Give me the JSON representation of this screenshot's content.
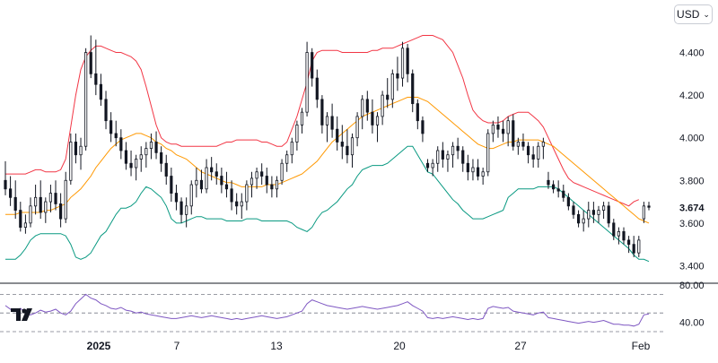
{
  "currency_selector": {
    "value": "USD",
    "icon": "chevron-down-icon"
  },
  "logo": {
    "text": "TV"
  },
  "colors": {
    "upper_band": "#f23645",
    "basis": "#ff9800",
    "lower_band": "#089981",
    "rsi": "#7e57c2",
    "candle": "#131722",
    "axis_text": "#131722"
  },
  "chart_data": [
    {
      "type": "candlestick",
      "title": "",
      "overlays": [
        "bollinger_upper",
        "bollinger_basis",
        "bollinger_lower"
      ],
      "y_ticks": [
        "4.400",
        "4.200",
        "4.000",
        "3.800",
        "3.600",
        "3.400"
      ],
      "ylim": [
        3.385,
        4.52
      ],
      "last_price": "3.674",
      "x_ticks": [
        "2025",
        "7",
        "13",
        "20",
        "27",
        "Feb"
      ],
      "grid": false,
      "candles": [
        [
          3.8,
          3.89,
          3.73,
          3.76
        ],
        [
          3.76,
          3.82,
          3.68,
          3.72
        ],
        [
          3.72,
          3.8,
          3.62,
          3.66
        ],
        [
          3.66,
          3.7,
          3.56,
          3.58
        ],
        [
          3.58,
          3.64,
          3.55,
          3.6
        ],
        [
          3.6,
          3.72,
          3.58,
          3.68
        ],
        [
          3.68,
          3.78,
          3.64,
          3.72
        ],
        [
          3.72,
          3.8,
          3.62,
          3.65
        ],
        [
          3.65,
          3.72,
          3.6,
          3.7
        ],
        [
          3.7,
          3.78,
          3.65,
          3.74
        ],
        [
          3.74,
          3.8,
          3.66,
          3.69
        ],
        [
          3.69,
          3.74,
          3.58,
          3.62
        ],
        [
          3.62,
          3.84,
          3.6,
          3.8
        ],
        [
          3.8,
          4.02,
          3.78,
          3.98
        ],
        [
          3.98,
          4.02,
          3.88,
          3.92
        ],
        [
          3.92,
          4.0,
          3.85,
          3.96
        ],
        [
          3.96,
          4.42,
          3.94,
          4.4
        ],
        [
          4.4,
          4.48,
          4.28,
          4.3
        ],
        [
          4.3,
          4.46,
          4.2,
          4.25
        ],
        [
          4.25,
          4.3,
          4.15,
          4.18
        ],
        [
          4.18,
          4.22,
          4.04,
          4.08
        ],
        [
          4.08,
          4.12,
          3.98,
          4.02
        ],
        [
          4.02,
          4.08,
          3.96,
          4.0
        ],
        [
          4.0,
          4.04,
          3.9,
          3.94
        ],
        [
          3.94,
          3.98,
          3.85,
          3.88
        ],
        [
          3.88,
          3.94,
          3.82,
          3.86
        ],
        [
          3.86,
          3.92,
          3.8,
          3.9
        ],
        [
          3.9,
          3.96,
          3.84,
          3.92
        ],
        [
          3.92,
          3.98,
          3.86,
          3.95
        ],
        [
          3.95,
          4.02,
          3.9,
          3.98
        ],
        [
          3.98,
          4.03,
          3.9,
          3.93
        ],
        [
          3.93,
          3.96,
          3.84,
          3.88
        ],
        [
          3.88,
          3.92,
          3.78,
          3.82
        ],
        [
          3.82,
          3.86,
          3.7,
          3.74
        ],
        [
          3.74,
          3.78,
          3.66,
          3.7
        ],
        [
          3.7,
          3.72,
          3.6,
          3.64
        ],
        [
          3.64,
          3.72,
          3.58,
          3.68
        ],
        [
          3.68,
          3.8,
          3.64,
          3.78
        ],
        [
          3.78,
          3.86,
          3.72,
          3.8
        ],
        [
          3.8,
          3.85,
          3.74,
          3.76
        ],
        [
          3.76,
          3.9,
          3.74,
          3.86
        ],
        [
          3.86,
          3.91,
          3.8,
          3.84
        ],
        [
          3.84,
          3.88,
          3.78,
          3.82
        ],
        [
          3.82,
          3.86,
          3.74,
          3.78
        ],
        [
          3.78,
          3.84,
          3.72,
          3.76
        ],
        [
          3.76,
          3.8,
          3.66,
          3.7
        ],
        [
          3.7,
          3.74,
          3.64,
          3.68
        ],
        [
          3.68,
          3.74,
          3.62,
          3.7
        ],
        [
          3.7,
          3.8,
          3.66,
          3.78
        ],
        [
          3.78,
          3.84,
          3.72,
          3.81
        ],
        [
          3.81,
          3.86,
          3.76,
          3.84
        ],
        [
          3.84,
          3.88,
          3.78,
          3.82
        ],
        [
          3.82,
          3.86,
          3.74,
          3.78
        ],
        [
          3.78,
          3.82,
          3.72,
          3.76
        ],
        [
          3.76,
          3.82,
          3.72,
          3.8
        ],
        [
          3.8,
          3.9,
          3.78,
          3.88
        ],
        [
          3.88,
          3.94,
          3.84,
          3.92
        ],
        [
          3.92,
          4.0,
          3.88,
          3.98
        ],
        [
          3.98,
          4.08,
          3.94,
          4.06
        ],
        [
          4.06,
          4.14,
          4.02,
          4.12
        ],
        [
          4.12,
          4.45,
          4.1,
          4.4
        ],
        [
          4.4,
          4.42,
          4.24,
          4.28
        ],
        [
          4.28,
          4.32,
          4.14,
          4.18
        ],
        [
          4.18,
          4.2,
          4.02,
          4.06
        ],
        [
          4.06,
          4.12,
          3.98,
          4.1
        ],
        [
          4.1,
          4.16,
          4.0,
          4.04
        ],
        [
          4.04,
          4.1,
          3.94,
          3.98
        ],
        [
          3.98,
          4.06,
          3.9,
          3.96
        ],
        [
          3.96,
          4.04,
          3.88,
          3.92
        ],
        [
          3.92,
          4.02,
          3.86,
          4.0
        ],
        [
          4.0,
          4.12,
          3.96,
          4.1
        ],
        [
          4.1,
          4.2,
          4.04,
          4.18
        ],
        [
          4.18,
          4.22,
          4.08,
          4.12
        ],
        [
          4.12,
          4.18,
          4.02,
          4.06
        ],
        [
          4.06,
          4.12,
          3.98,
          4.1
        ],
        [
          4.1,
          4.22,
          4.06,
          4.2
        ],
        [
          4.2,
          4.28,
          4.14,
          4.18
        ],
        [
          4.18,
          4.32,
          4.14,
          4.3
        ],
        [
          4.3,
          4.38,
          4.22,
          4.28
        ],
        [
          4.28,
          4.45,
          4.24,
          4.42
        ],
        [
          4.42,
          4.44,
          4.26,
          4.3
        ],
        [
          4.3,
          4.32,
          4.12,
          4.16
        ],
        [
          4.16,
          4.18,
          4.04,
          4.08
        ],
        [
          4.08,
          4.1,
          3.98,
          4.02
        ],
        [
          3.88,
          3.9,
          3.84,
          3.86
        ],
        [
          3.86,
          3.9,
          3.82,
          3.88
        ],
        [
          3.88,
          3.96,
          3.84,
          3.94
        ],
        [
          3.94,
          3.98,
          3.86,
          3.9
        ],
        [
          3.9,
          3.94,
          3.84,
          3.92
        ],
        [
          3.92,
          3.98,
          3.86,
          3.96
        ],
        [
          3.96,
          4.0,
          3.9,
          3.94
        ],
        [
          3.94,
          3.96,
          3.84,
          3.88
        ],
        [
          3.88,
          3.92,
          3.8,
          3.84
        ],
        [
          3.84,
          3.9,
          3.8,
          3.86
        ],
        [
          3.86,
          3.9,
          3.8,
          3.82
        ],
        [
          3.82,
          3.86,
          3.78,
          3.84
        ],
        [
          3.84,
          4.04,
          3.82,
          4.02
        ],
        [
          4.02,
          4.08,
          3.98,
          4.06
        ],
        [
          4.06,
          4.1,
          4.0,
          4.04
        ],
        [
          4.04,
          4.08,
          3.98,
          4.02
        ],
        [
          4.02,
          4.1,
          3.96,
          4.08
        ],
        [
          4.08,
          4.11,
          3.94,
          3.96
        ],
        [
          3.96,
          4.0,
          3.92,
          3.98
        ],
        [
          3.98,
          4.02,
          3.94,
          3.96
        ],
        [
          3.96,
          3.98,
          3.88,
          3.92
        ],
        [
          3.92,
          3.96,
          3.86,
          3.9
        ],
        [
          3.9,
          3.98,
          3.86,
          3.96
        ],
        [
          3.96,
          4.0,
          3.9,
          3.98
        ],
        [
          3.8,
          3.84,
          3.76,
          3.78
        ],
        [
          3.78,
          3.8,
          3.74,
          3.76
        ],
        [
          3.76,
          3.8,
          3.72,
          3.75
        ],
        [
          3.75,
          3.78,
          3.7,
          3.72
        ],
        [
          3.72,
          3.74,
          3.66,
          3.68
        ],
        [
          3.68,
          3.7,
          3.62,
          3.64
        ],
        [
          3.64,
          3.66,
          3.58,
          3.6
        ],
        [
          3.6,
          3.66,
          3.56,
          3.62
        ],
        [
          3.62,
          3.7,
          3.58,
          3.66
        ],
        [
          3.66,
          3.7,
          3.6,
          3.64
        ],
        [
          3.64,
          3.68,
          3.6,
          3.66
        ],
        [
          3.66,
          3.7,
          3.62,
          3.68
        ],
        [
          3.68,
          3.7,
          3.58,
          3.6
        ],
        [
          3.6,
          3.62,
          3.52,
          3.54
        ],
        [
          3.54,
          3.58,
          3.5,
          3.56
        ],
        [
          3.56,
          3.58,
          3.5,
          3.52
        ],
        [
          3.52,
          3.54,
          3.46,
          3.5
        ],
        [
          3.5,
          3.54,
          3.44,
          3.46
        ],
        [
          3.46,
          3.54,
          3.44,
          3.52
        ],
        [
          3.62,
          3.7,
          3.6,
          3.68
        ],
        [
          3.68,
          3.7,
          3.66,
          3.674
        ]
      ],
      "bollinger_upper": [
        3.83,
        3.83,
        3.83,
        3.83,
        3.83,
        3.84,
        3.85,
        3.85,
        3.84,
        3.84,
        3.84,
        3.85,
        3.9,
        4.05,
        4.2,
        4.32,
        4.38,
        4.41,
        4.43,
        4.43,
        4.42,
        4.41,
        4.4,
        4.4,
        4.39,
        4.38,
        4.36,
        4.32,
        4.24,
        4.15,
        4.06,
        4.0,
        3.98,
        3.97,
        3.97,
        3.96,
        3.96,
        3.96,
        3.96,
        3.96,
        3.96,
        3.96,
        3.96,
        3.97,
        3.98,
        3.98,
        3.99,
        3.99,
        3.99,
        3.99,
        3.99,
        3.98,
        3.98,
        3.97,
        3.96,
        3.96,
        3.98,
        4.04,
        4.1,
        4.18,
        4.26,
        4.36,
        4.4,
        4.41,
        4.41,
        4.41,
        4.41,
        4.4,
        4.4,
        4.4,
        4.4,
        4.4,
        4.4,
        4.41,
        4.41,
        4.42,
        4.42,
        4.42,
        4.43,
        4.44,
        4.45,
        4.46,
        4.47,
        4.48,
        4.48,
        4.48,
        4.47,
        4.46,
        4.43,
        4.4,
        4.34,
        4.28,
        4.2,
        4.13,
        4.1,
        4.08,
        4.07,
        4.07,
        4.07,
        4.08,
        4.1,
        4.11,
        4.12,
        4.12,
        4.12,
        4.1,
        4.08,
        4.05,
        4.0,
        3.95,
        3.9,
        3.85,
        3.81,
        3.79,
        3.78,
        3.77,
        3.76,
        3.75,
        3.74,
        3.73,
        3.72,
        3.71,
        3.7,
        3.69,
        3.68,
        3.7,
        3.71
      ],
      "bollinger_basis": [
        3.64,
        3.64,
        3.64,
        3.65,
        3.65,
        3.65,
        3.65,
        3.65,
        3.66,
        3.66,
        3.67,
        3.68,
        3.69,
        3.72,
        3.74,
        3.76,
        3.79,
        3.82,
        3.86,
        3.89,
        3.92,
        3.95,
        3.97,
        3.99,
        4.0,
        4.01,
        4.02,
        4.02,
        4.01,
        4.0,
        3.98,
        3.97,
        3.95,
        3.94,
        3.92,
        3.91,
        3.9,
        3.88,
        3.86,
        3.84,
        3.83,
        3.82,
        3.81,
        3.8,
        3.79,
        3.79,
        3.78,
        3.77,
        3.77,
        3.77,
        3.77,
        3.77,
        3.78,
        3.78,
        3.78,
        3.79,
        3.8,
        3.81,
        3.82,
        3.83,
        3.85,
        3.87,
        3.89,
        3.92,
        3.95,
        3.98,
        4.0,
        4.02,
        4.04,
        4.06,
        4.08,
        4.1,
        4.11,
        4.12,
        4.13,
        4.14,
        4.15,
        4.16,
        4.17,
        4.18,
        4.19,
        4.19,
        4.19,
        4.18,
        4.17,
        4.15,
        4.13,
        4.11,
        4.09,
        4.07,
        4.05,
        4.03,
        4.01,
        3.99,
        3.97,
        3.96,
        3.95,
        3.95,
        3.96,
        3.97,
        3.98,
        3.98,
        3.99,
        3.99,
        3.99,
        3.99,
        3.99,
        3.98,
        3.97,
        3.96,
        3.94,
        3.92,
        3.9,
        3.88,
        3.86,
        3.84,
        3.82,
        3.8,
        3.78,
        3.76,
        3.74,
        3.72,
        3.7,
        3.68,
        3.66,
        3.64,
        3.62,
        3.61,
        3.6
      ],
      "bollinger_lower": [
        3.43,
        3.43,
        3.43,
        3.45,
        3.48,
        3.52,
        3.54,
        3.55,
        3.55,
        3.55,
        3.55,
        3.55,
        3.54,
        3.5,
        3.44,
        3.43,
        3.44,
        3.46,
        3.5,
        3.54,
        3.56,
        3.6,
        3.64,
        3.67,
        3.67,
        3.68,
        3.7,
        3.74,
        3.77,
        3.76,
        3.74,
        3.72,
        3.68,
        3.62,
        3.6,
        3.6,
        3.61,
        3.62,
        3.63,
        3.63,
        3.62,
        3.62,
        3.62,
        3.62,
        3.61,
        3.61,
        3.61,
        3.61,
        3.62,
        3.62,
        3.62,
        3.61,
        3.61,
        3.61,
        3.61,
        3.61,
        3.61,
        3.6,
        3.58,
        3.57,
        3.56,
        3.58,
        3.62,
        3.65,
        3.66,
        3.68,
        3.7,
        3.73,
        3.76,
        3.78,
        3.82,
        3.85,
        3.86,
        3.87,
        3.87,
        3.87,
        3.88,
        3.9,
        3.92,
        3.94,
        3.96,
        3.96,
        3.92,
        3.88,
        3.84,
        3.83,
        3.8,
        3.77,
        3.74,
        3.71,
        3.69,
        3.66,
        3.64,
        3.62,
        3.62,
        3.62,
        3.63,
        3.64,
        3.65,
        3.66,
        3.72,
        3.74,
        3.76,
        3.76,
        3.76,
        3.76,
        3.77,
        3.77,
        3.77,
        3.77,
        3.76,
        3.74,
        3.72,
        3.7,
        3.68,
        3.66,
        3.64,
        3.62,
        3.6,
        3.58,
        3.56,
        3.54,
        3.52,
        3.5,
        3.48,
        3.45,
        3.43,
        3.43,
        3.42
      ]
    },
    {
      "type": "line",
      "series": [
        {
          "values": [
            58,
            54,
            52,
            55,
            50,
            48,
            50,
            53,
            51,
            52,
            54,
            50,
            48,
            52,
            60,
            65,
            70,
            66,
            64,
            60,
            58,
            55,
            54,
            56,
            53,
            52,
            50,
            51,
            49,
            48,
            47,
            46,
            45,
            44,
            44,
            45,
            46,
            47,
            46,
            45,
            46,
            47,
            46,
            45,
            44,
            43,
            44,
            43,
            44,
            45,
            46,
            47,
            46,
            45,
            44,
            45,
            46,
            48,
            50,
            52,
            60,
            64,
            62,
            60,
            58,
            57,
            56,
            55,
            54,
            55,
            56,
            57,
            56,
            55,
            54,
            55,
            56,
            57,
            58,
            60,
            62,
            58,
            55,
            52,
            45,
            44,
            45,
            44,
            45,
            46,
            45,
            44,
            43,
            44,
            43,
            44,
            55,
            57,
            56,
            55,
            56,
            52,
            51,
            50,
            49,
            48,
            50,
            51,
            45,
            44,
            43,
            42,
            41,
            40,
            39,
            40,
            41,
            40,
            41,
            42,
            40,
            38,
            38,
            37,
            37,
            36,
            38,
            48,
            49
          ]
        }
      ],
      "yticks": [
        "80.00",
        "40.00"
      ],
      "ylim": [
        30,
        80
      ],
      "reference_levels": [
        70,
        50,
        30
      ]
    }
  ]
}
